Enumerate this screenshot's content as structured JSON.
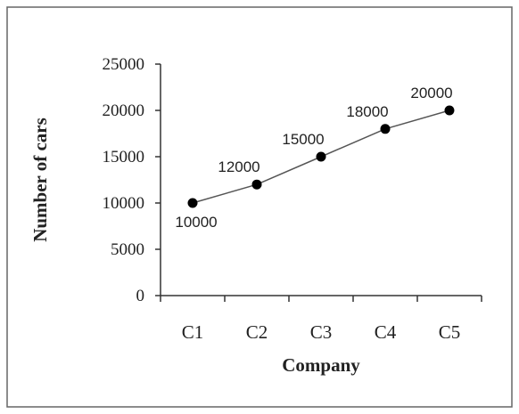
{
  "chart_data": {
    "type": "line",
    "categories": [
      "C1",
      "C2",
      "C3",
      "C4",
      "C5"
    ],
    "values": [
      10000,
      12000,
      15000,
      18000,
      20000
    ],
    "data_labels": [
      "10000",
      "12000",
      "15000",
      "18000",
      "20000"
    ],
    "title": "",
    "xlabel": "Company",
    "ylabel": "Number of cars",
    "ylim": [
      0,
      25000
    ],
    "yticks": [
      0,
      5000,
      10000,
      15000,
      20000,
      25000
    ],
    "ytick_labels": [
      "0",
      "5000",
      "10000",
      "15000",
      "20000",
      "25000"
    ],
    "grid": false,
    "legend": "none",
    "line_color": "#555555",
    "marker_color": "#000000"
  }
}
